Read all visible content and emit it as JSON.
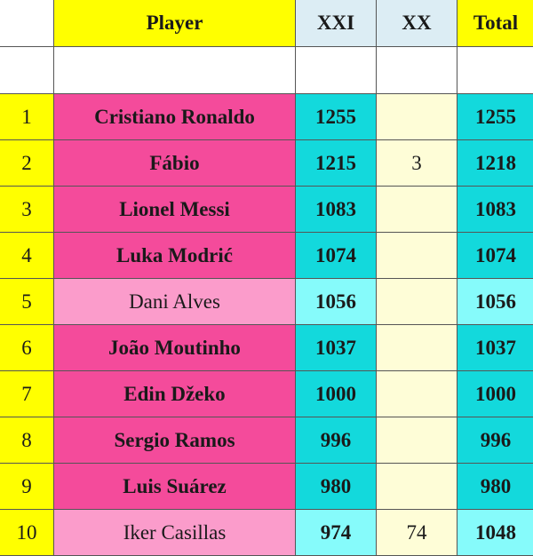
{
  "header": {
    "player": "Player",
    "xxi": "XXI",
    "xx": "XX",
    "total": "Total"
  },
  "colors": {
    "yellow": "#ffff00",
    "pink": "#f44b9b",
    "light_pink": "#fb9ccb",
    "teal": "#13d9dc",
    "light_cyan": "#86fbfb",
    "cream": "#fefdd7",
    "header_blue": "#dcedf4"
  },
  "rows": [
    {
      "rank": "1",
      "player": "Cristiano Ronaldo",
      "xxi": "1255",
      "xx": "",
      "total": "1255",
      "active": false
    },
    {
      "rank": "2",
      "player": "Fábio",
      "xxi": "1215",
      "xx": "3",
      "total": "1218",
      "active": false
    },
    {
      "rank": "3",
      "player": "Lionel Messi",
      "xxi": "1083",
      "xx": "",
      "total": "1083",
      "active": false
    },
    {
      "rank": "4",
      "player": "Luka Modrić",
      "xxi": "1074",
      "xx": "",
      "total": "1074",
      "active": false
    },
    {
      "rank": "5",
      "player": "Dani Alves",
      "xxi": "1056",
      "xx": "",
      "total": "1056",
      "active": true
    },
    {
      "rank": "6",
      "player": "João Moutinho",
      "xxi": "1037",
      "xx": "",
      "total": "1037",
      "active": false
    },
    {
      "rank": "7",
      "player": "Edin Džeko",
      "xxi": "1000",
      "xx": "",
      "total": "1000",
      "active": false
    },
    {
      "rank": "8",
      "player": "Sergio Ramos",
      "xxi": "996",
      "xx": "",
      "total": "996",
      "active": false
    },
    {
      "rank": "9",
      "player": "Luis Suárez",
      "xxi": "980",
      "xx": "",
      "total": "980",
      "active": false
    },
    {
      "rank": "10",
      "player": "Iker Casillas",
      "xxi": "974",
      "xx": "74",
      "total": "1048",
      "active": true
    }
  ]
}
